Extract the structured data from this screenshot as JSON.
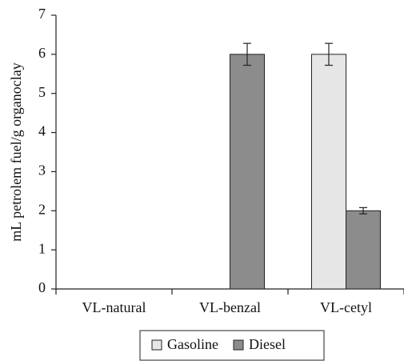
{
  "chart_data": {
    "type": "bar",
    "y_label": "mL petrolem fuel/g organoclay",
    "categories": [
      "VL-natural",
      "VL-benzal",
      "VL-cetyl"
    ],
    "series": [
      {
        "name": "Gasoline",
        "color": "#e6e6e6",
        "values": [
          0,
          0,
          6
        ],
        "errors": [
          null,
          null,
          0.28
        ]
      },
      {
        "name": "Diesel",
        "color": "#8c8c8c",
        "values": [
          0,
          6,
          2
        ],
        "errors": [
          null,
          0.28,
          0.08
        ]
      }
    ],
    "ylim": [
      0,
      7
    ],
    "yticks": [
      0,
      1,
      2,
      3,
      4,
      5,
      6,
      7
    ],
    "grid": false,
    "legend": "bottom"
  }
}
